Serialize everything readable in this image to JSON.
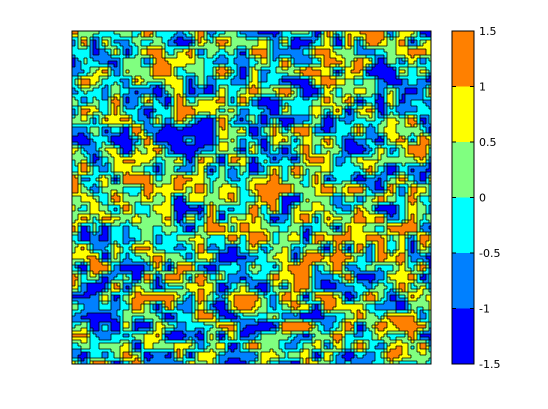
{
  "chart_data": {
    "type": "heatmap",
    "subtype": "filled-contour",
    "title": "",
    "xlabel": "",
    "ylabel": "",
    "axes_ticks_visible": false,
    "grid": false,
    "legend": "colorbar-right",
    "contour_lines": true,
    "contour_line_color": "#000000",
    "colorbar": {
      "levels": [
        -1.5,
        -1,
        -0.5,
        0,
        0.5,
        1,
        1.5
      ],
      "tick_labels": [
        "-1.5",
        "-1",
        "-0.5",
        "0",
        "0.5",
        "1",
        "1.5"
      ],
      "colors": [
        "#0000ff",
        "#0080ff",
        "#00ffff",
        "#80ff80",
        "#ffff00",
        "#ff8000"
      ]
    }
  }
}
